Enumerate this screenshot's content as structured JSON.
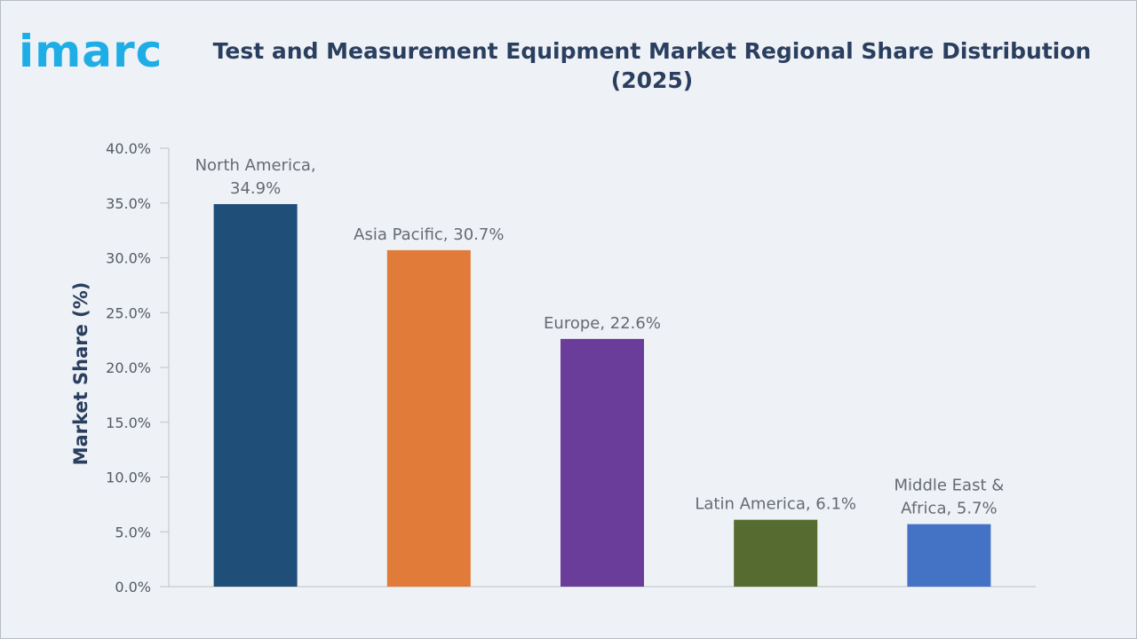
{
  "brand": {
    "logo_text": "imarc",
    "logo_color": "#1eaee5"
  },
  "chart_data": {
    "type": "bar",
    "title": "Test and Measurement Equipment Market Regional Share Distribution (2025)",
    "title_lines": [
      "Test and Measurement Equipment Market Regional Share Distribution",
      "(2025)"
    ],
    "ylabel": "Market Share (%)",
    "xlabel": "",
    "ylim": [
      0,
      40
    ],
    "yticks": [
      0,
      5,
      10,
      15,
      20,
      25,
      30,
      35,
      40
    ],
    "ytick_labels": [
      "0.0%",
      "5.0%",
      "10.0%",
      "15.0%",
      "20.0%",
      "25.0%",
      "30.0%",
      "35.0%",
      "40.0%"
    ],
    "grid": false,
    "legend": "none",
    "categories": [
      "North America",
      "Asia Pacific",
      "Europe",
      "Latin America",
      "Middle East & Africa"
    ],
    "values": [
      34.9,
      30.7,
      22.6,
      6.1,
      5.7
    ],
    "colors": [
      "#1f4e79",
      "#e07b39",
      "#6a3d9a",
      "#556b2f",
      "#4472c4"
    ],
    "data_labels": [
      [
        "North America,",
        "34.9%"
      ],
      [
        "Asia Pacific, 30.7%"
      ],
      [
        "Europe, 22.6%"
      ],
      [
        "Latin America, 6.1%"
      ],
      [
        "Middle East &",
        "Africa, 5.7%"
      ]
    ]
  }
}
